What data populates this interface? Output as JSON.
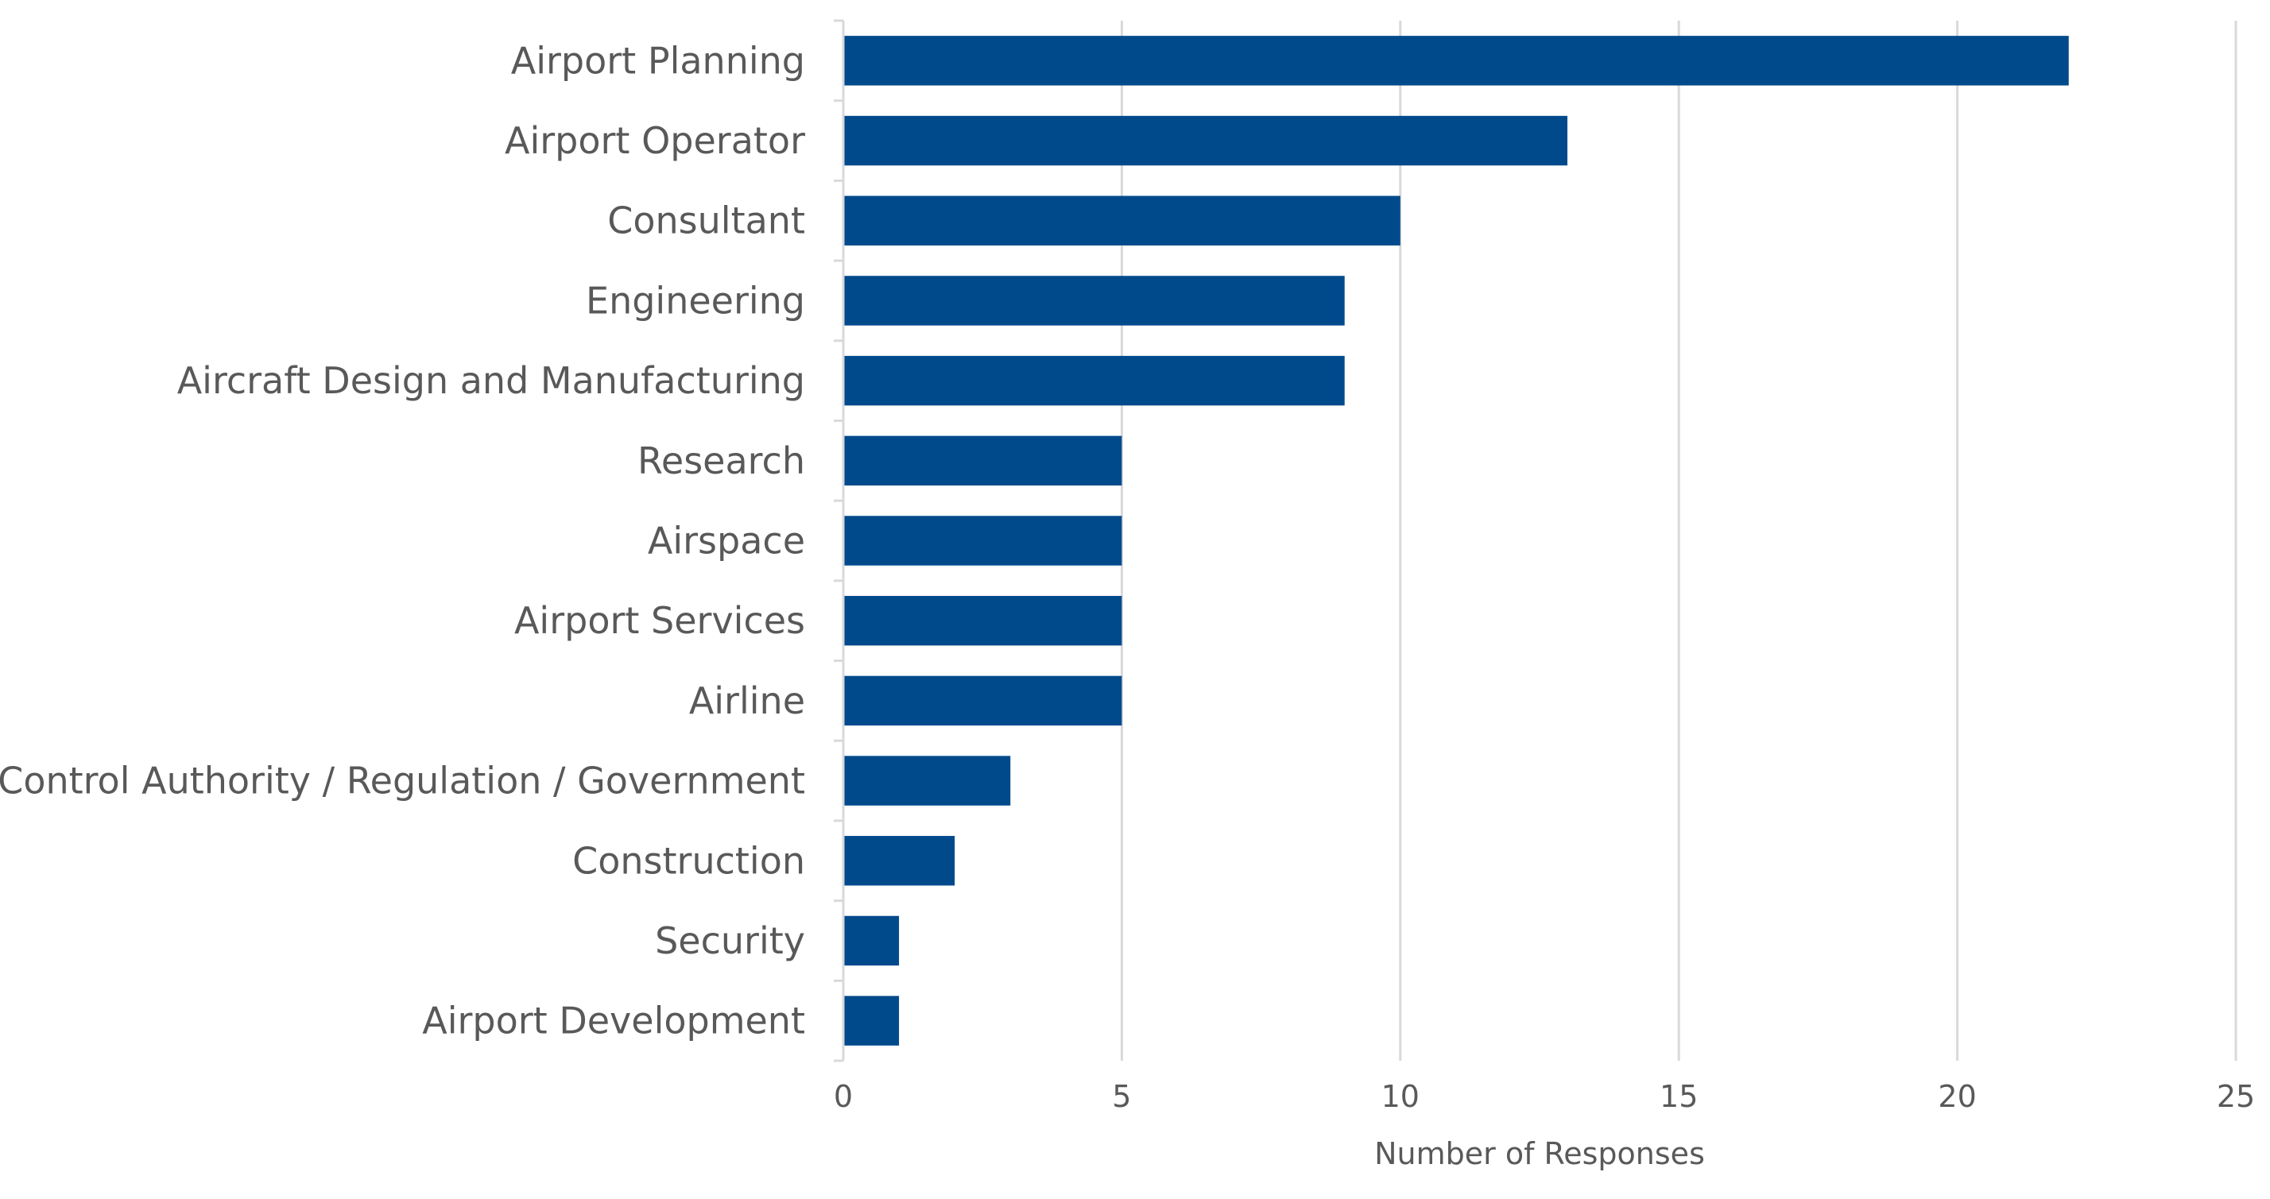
{
  "chart_data": {
    "type": "bar",
    "orientation": "horizontal",
    "title": "",
    "xlabel": "Number of Responses",
    "ylabel": "",
    "xlim": [
      0,
      25
    ],
    "xticks": [
      0,
      5,
      10,
      15,
      20,
      25
    ],
    "grid": true,
    "bar_color": "#004A8C",
    "categories": [
      "Airport Planning",
      "Airport Operator",
      "Consultant",
      "Engineering",
      "Aircraft Design and Manufacturing",
      "Research",
      "Airspace",
      "Airport Services",
      "Airline",
      "Control Authority / Regulation / Government",
      "Construction",
      "Security",
      "Airport Development"
    ],
    "values": [
      22,
      13,
      10,
      9,
      9,
      5,
      5,
      5,
      5,
      3,
      2,
      1,
      1
    ]
  }
}
